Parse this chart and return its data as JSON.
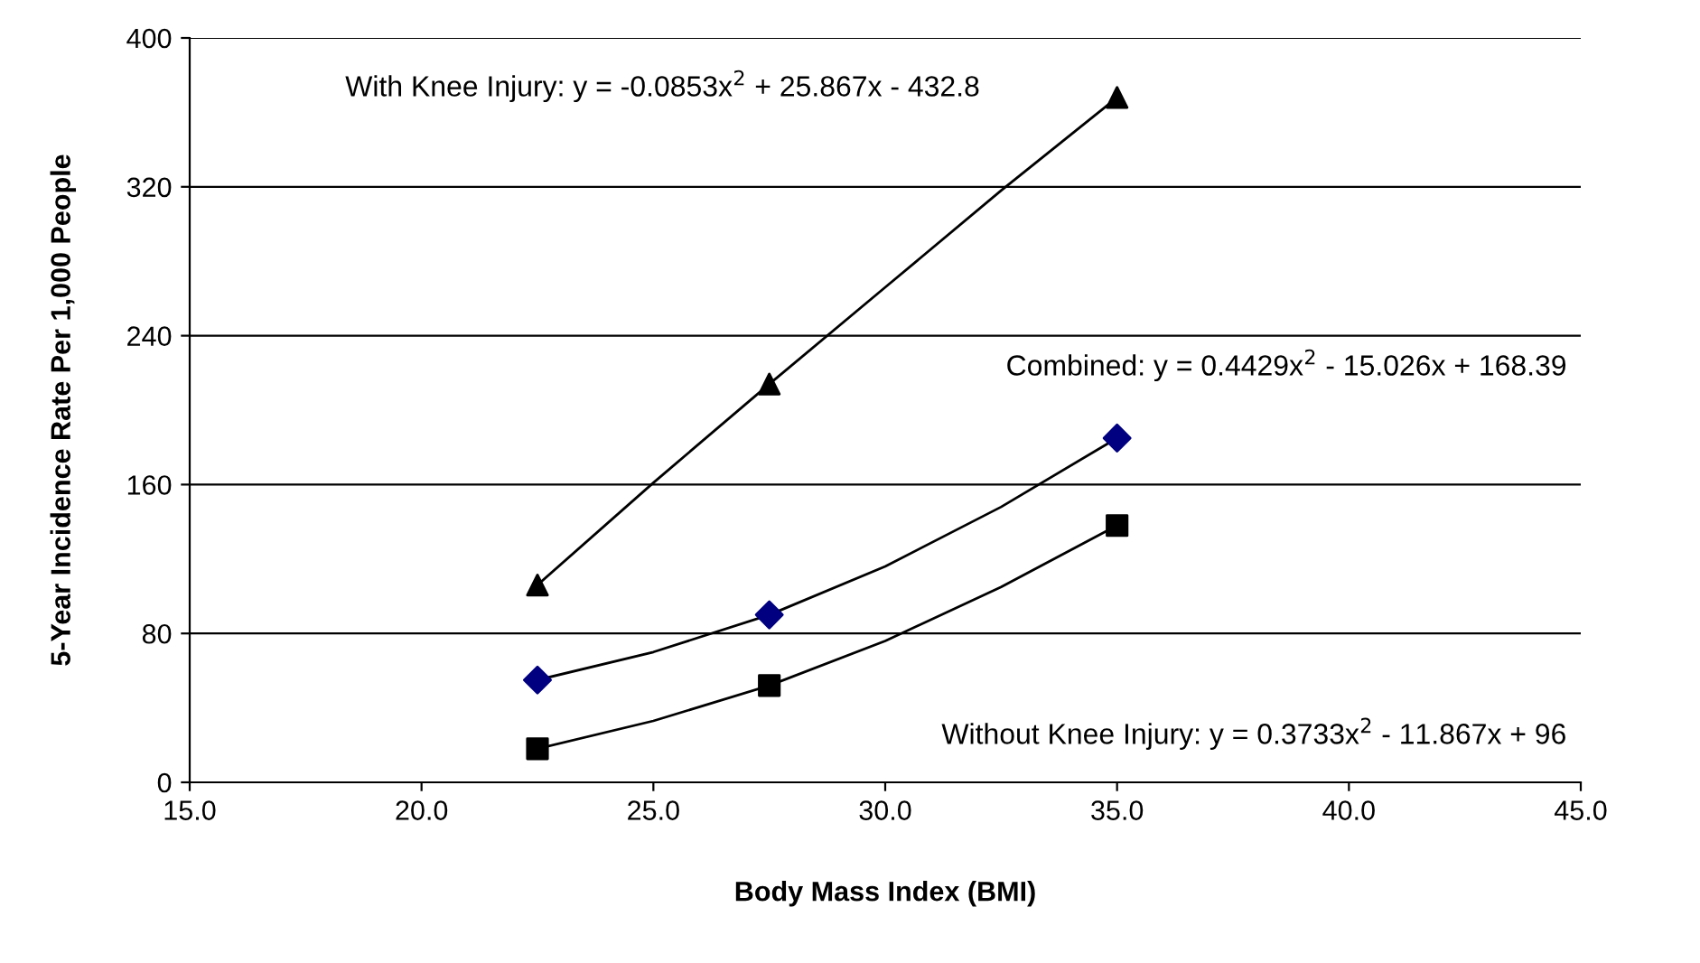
{
  "chart_data": {
    "type": "scatter",
    "xlabel": "Body Mass Index (BMI)",
    "ylabel": "5-Year Incidence Rate Per 1,000 People",
    "xlim": [
      15,
      45
    ],
    "xticks": [
      {
        "value": 15,
        "label": "15.0"
      },
      {
        "value": 20,
        "label": "20.0"
      },
      {
        "value": 25,
        "label": "25.0"
      },
      {
        "value": 30,
        "label": "30.0"
      },
      {
        "value": 35,
        "label": "35.0"
      },
      {
        "value": 40,
        "label": "40.0"
      },
      {
        "value": 45,
        "label": "45.0"
      }
    ],
    "ylim": [
      0,
      400
    ],
    "yticks": [
      0,
      80,
      160,
      240,
      320,
      400
    ],
    "grid": "y",
    "series": [
      {
        "type": "line",
        "marker": "none",
        "color": "#000000",
        "x": [
          22.5,
          25,
          27.5,
          30,
          32.5,
          35
        ],
        "values": [
          106,
          161,
          214,
          266,
          318,
          368
        ]
      },
      {
        "type": "line",
        "marker": "none",
        "color": "#000000",
        "x": [
          22.5,
          25,
          27.5,
          30,
          32.5,
          35
        ],
        "values": [
          55,
          70,
          90,
          116,
          148,
          185
        ]
      },
      {
        "type": "line",
        "marker": "none",
        "color": "#000000",
        "x": [
          22.5,
          25,
          27.5,
          30,
          32.5,
          35
        ],
        "values": [
          18,
          33,
          52,
          76,
          105,
          138
        ]
      },
      {
        "marker": "triangle",
        "color": "#000000",
        "x": [
          22.5,
          27.5,
          35
        ],
        "values": [
          106,
          214,
          368
        ]
      },
      {
        "marker": "diamond",
        "color": "#000080",
        "x": [
          22.5,
          27.5,
          35
        ],
        "values": [
          55,
          90,
          185
        ]
      },
      {
        "marker": "square",
        "color": "#000000",
        "x": [
          22.5,
          27.5,
          35
        ],
        "values": [
          18,
          52,
          138
        ]
      }
    ],
    "annotations": [
      "With Knee Injury: y = -0.0853x$^{2}$ + 25.867x - 432.8",
      "Combined: y = 0.4429x$^{2}$ - 15.026x + 168.39",
      "Without Knee Injury: y = 0.3733x$^{2}$ - 11.867x + 96"
    ]
  }
}
